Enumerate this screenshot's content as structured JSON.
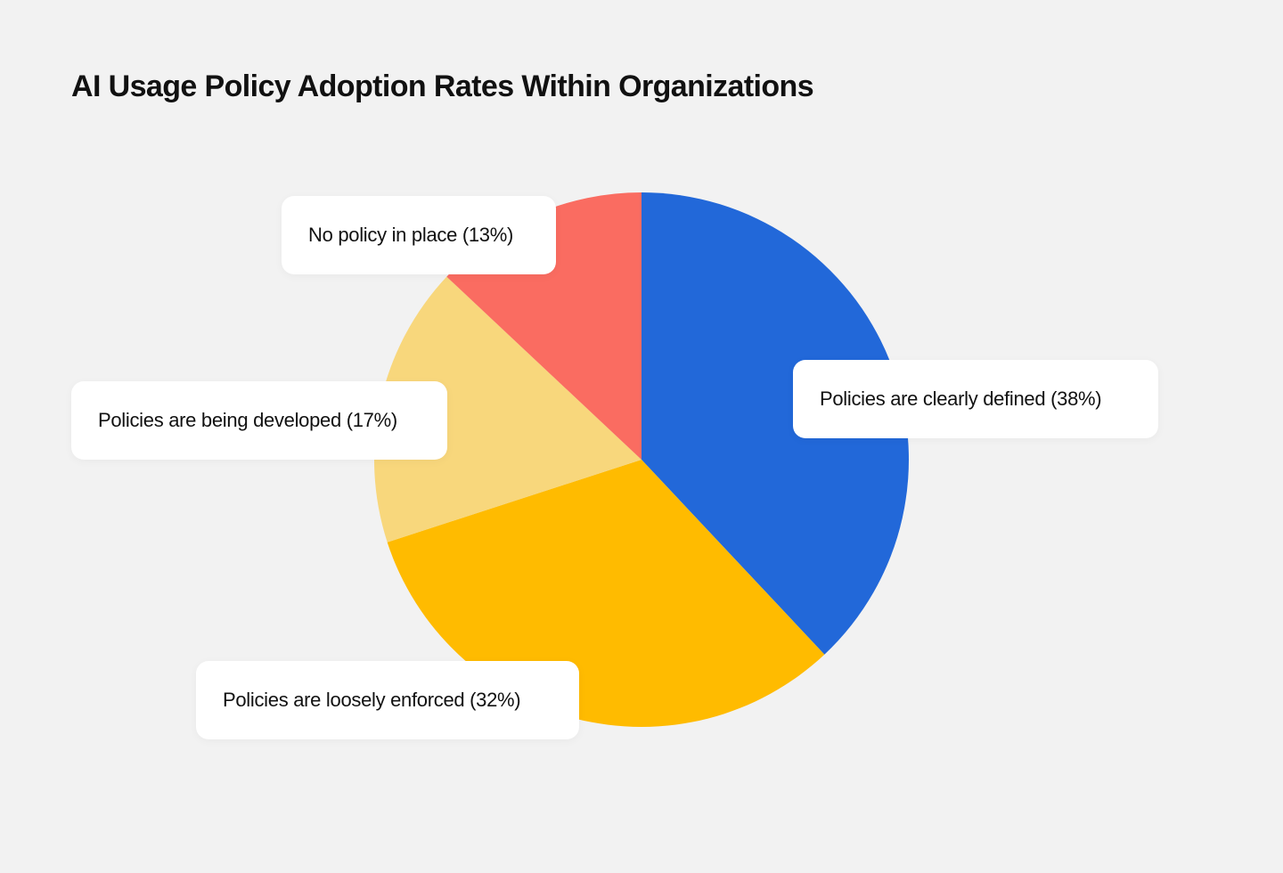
{
  "chart_data": {
    "type": "pie",
    "title": "AI Usage Policy Adoption Rates Within Organizations",
    "slices": [
      {
        "label": "Policies are clearly defined (38%)",
        "name": "Policies are clearly defined",
        "value": 38,
        "color": "#2268d9"
      },
      {
        "label": "Policies are loosely enforced (32%)",
        "name": "Policies are loosely enforced",
        "value": 32,
        "color": "#ffbb00"
      },
      {
        "label": "Policies are being developed (17%)",
        "name": "Policies are being developed",
        "value": 17,
        "color": "#f8d77c"
      },
      {
        "label": "No policy in place (13%)",
        "name": "No policy in place",
        "value": 13,
        "color": "#fa6c61"
      }
    ],
    "start": "top",
    "direction": "clockwise",
    "legend": "none"
  },
  "colors": {
    "background": "#f2f2f2",
    "label_background": "#ffffff",
    "text": "#111111"
  }
}
